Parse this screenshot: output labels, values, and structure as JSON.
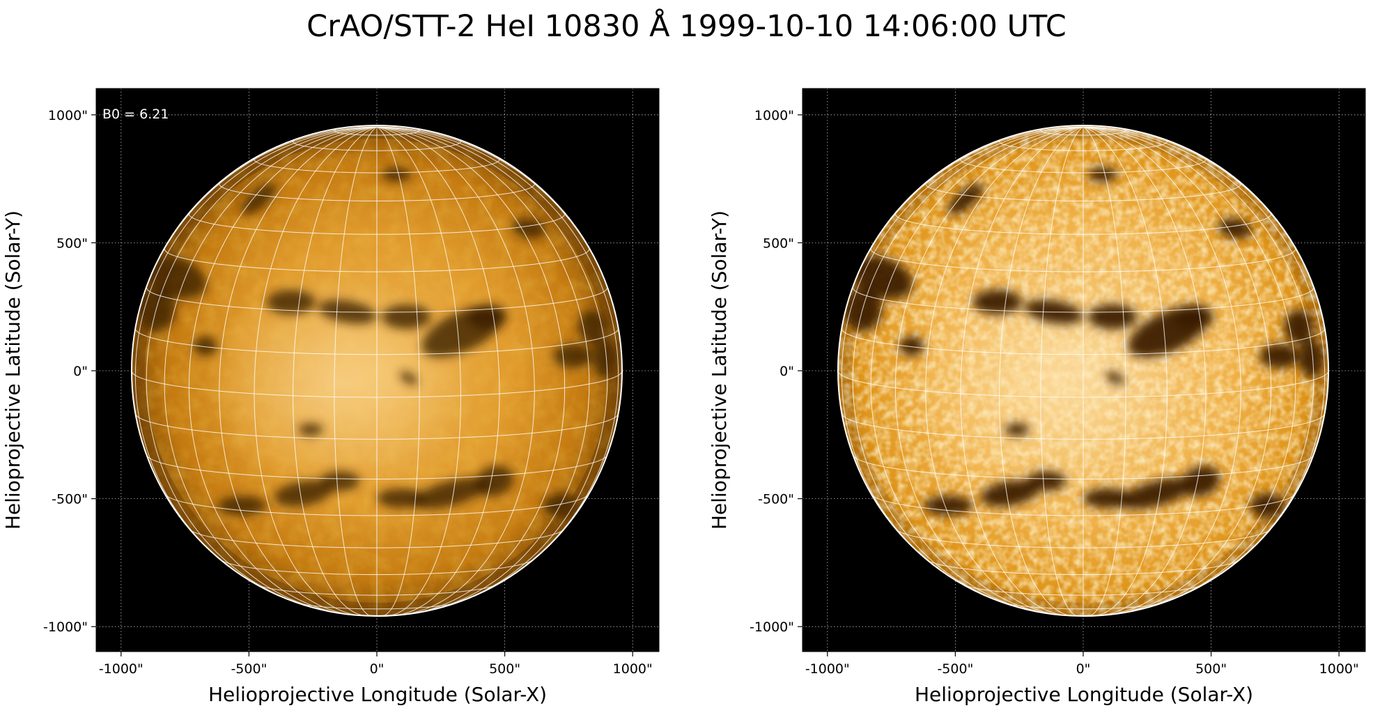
{
  "figure": {
    "title": "CrAO/STT-2 HeI 10830 Å 1999-10-10 14:06:00 UTC"
  },
  "colors": {
    "sun_bright": "#f5c26b",
    "sun_mid": "#d98a14",
    "sun_dark": "#3b1e02",
    "background": "#000000",
    "grid": "#ffffff"
  },
  "panels": [
    {
      "id": "left",
      "variant": "smooth",
      "annotation": "B0 = 6.21",
      "xlabel": "Helioprojective Longitude (Solar-X)",
      "ylabel": "Helioprojective Latitude (Solar-Y)",
      "x_ticks": [
        {
          "value": -1000,
          "label": "-1000\""
        },
        {
          "value": -500,
          "label": "-500\""
        },
        {
          "value": 0,
          "label": "0\""
        },
        {
          "value": 500,
          "label": "500\""
        },
        {
          "value": 1000,
          "label": "1000\""
        }
      ],
      "y_ticks": [
        {
          "value": 1000,
          "label": "1000\""
        },
        {
          "value": 500,
          "label": "500\""
        },
        {
          "value": 0,
          "label": "0\""
        },
        {
          "value": -500,
          "label": "-500\""
        },
        {
          "value": -1000,
          "label": "-1000\""
        }
      ]
    },
    {
      "id": "right",
      "variant": "enhanced",
      "annotation": "",
      "xlabel": "Helioprojective Longitude (Solar-X)",
      "ylabel": "Helioprojective Latitude (Solar-Y)",
      "x_ticks": [
        {
          "value": -1000,
          "label": "-1000\""
        },
        {
          "value": -500,
          "label": "-500\""
        },
        {
          "value": 0,
          "label": "0\""
        },
        {
          "value": 500,
          "label": "500\""
        },
        {
          "value": 1000,
          "label": "1000\""
        }
      ],
      "y_ticks": [
        {
          "value": 1000,
          "label": "1000\""
        },
        {
          "value": 500,
          "label": "500\""
        },
        {
          "value": 0,
          "label": "0\""
        },
        {
          "value": -500,
          "label": "-500\""
        },
        {
          "value": -1000,
          "label": "-1000\""
        }
      ]
    }
  ]
}
